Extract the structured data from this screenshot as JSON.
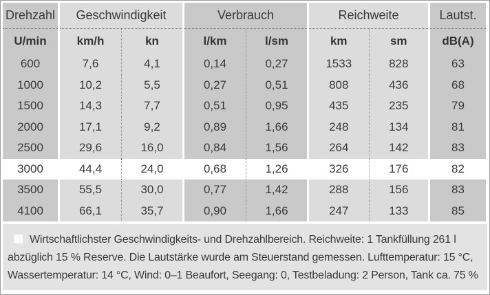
{
  "table": {
    "groups": [
      {
        "label": "Drehzahl",
        "units": [
          "U/min"
        ]
      },
      {
        "label": "Geschwindigkeit",
        "units": [
          "km/h",
          "kn"
        ]
      },
      {
        "label": "Verbrauch",
        "units": [
          "l/km",
          "l/sm"
        ]
      },
      {
        "label": "Reichweite",
        "units": [
          "km",
          "sm"
        ]
      },
      {
        "label": "Lautst.",
        "units": [
          "dB(A)"
        ]
      }
    ],
    "rows": [
      {
        "rpm": "600",
        "kmh": "7,6",
        "kn": "4,1",
        "lkm": "0,14",
        "lsm": "0,27",
        "km": "1533",
        "sm": "828",
        "db": "63"
      },
      {
        "rpm": "1000",
        "kmh": "10,2",
        "kn": "5,5",
        "lkm": "0,27",
        "lsm": "0,51",
        "km": "808",
        "sm": "436",
        "db": "68"
      },
      {
        "rpm": "1500",
        "kmh": "14,3",
        "kn": "7,7",
        "lkm": "0,51",
        "lsm": "0,95",
        "km": "435",
        "sm": "235",
        "db": "79"
      },
      {
        "rpm": "2000",
        "kmh": "17,1",
        "kn": "9,2",
        "lkm": "0,89",
        "lsm": "1,66",
        "km": "248",
        "sm": "134",
        "db": "81"
      },
      {
        "rpm": "2500",
        "kmh": "29,6",
        "kn": "16,0",
        "lkm": "0,84",
        "lsm": "1,56",
        "km": "264",
        "sm": "142",
        "db": "83"
      },
      {
        "rpm": "3000",
        "kmh": "44,4",
        "kn": "24,0",
        "lkm": "0,68",
        "lsm": "1,26",
        "km": "326",
        "sm": "176",
        "db": "82"
      },
      {
        "rpm": "3500",
        "kmh": "55,5",
        "kn": "30,0",
        "lkm": "0,77",
        "lsm": "1,42",
        "km": "288",
        "sm": "156",
        "db": "83"
      },
      {
        "rpm": "4100",
        "kmh": "66,1",
        "kn": "35,7",
        "lkm": "0,90",
        "lsm": "1,66",
        "km": "247",
        "sm": "133",
        "db": "85"
      }
    ],
    "highlighted_rpm": "3000"
  },
  "footnote": {
    "lines": [
      "Wirtschaftlichster Geschwindigkeits- und Drehzahlbereich. Reichweite: 1 Tankfüllung 261 l",
      "abzüglich 15 % Reserve. Die Lautstärke wurde am Steuerstand gemessen. Lufttemperatur: 15 °C,",
      "Wassertemperatur: 14 °C, Wind: 0–1 Beaufort, Seegang: 0, Testbeladung: 2 Person, Tank ca. 75 %"
    ]
  },
  "colors": {
    "band_dark": "#c9c9c9",
    "band_light": "#dcdcdc",
    "highlight_row": "#ffffff",
    "footnote_panel": "#e3e3e3",
    "text": "#3a3a3a"
  }
}
